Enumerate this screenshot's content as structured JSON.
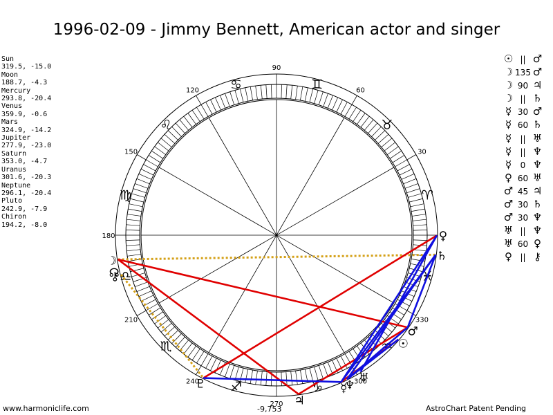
{
  "title": "1996-02-09 - Jimmy Bennett, American actor and singer",
  "planets": [
    {
      "name": "Sun",
      "lon": 319.5,
      "lat": -15.0,
      "coords": "319.5, -15.0"
    },
    {
      "name": "Moon",
      "lon": 188.7,
      "lat": -4.3,
      "coords": "188.7, -4.3"
    },
    {
      "name": "Mercury",
      "lon": 293.8,
      "lat": -20.4,
      "coords": "293.8, -20.4"
    },
    {
      "name": "Venus",
      "lon": 359.9,
      "lat": -0.6,
      "coords": "359.9, -0.6"
    },
    {
      "name": "Mars",
      "lon": 324.9,
      "lat": -14.2,
      "coords": "324.9, -14.2"
    },
    {
      "name": "Jupiter",
      "lon": 277.9,
      "lat": -23.0,
      "coords": "277.9, -23.0"
    },
    {
      "name": "Saturn",
      "lon": 353.0,
      "lat": -4.7,
      "coords": "353.0, -4.7"
    },
    {
      "name": "Uranus",
      "lon": 301.6,
      "lat": -20.3,
      "coords": "301.6, -20.3"
    },
    {
      "name": "Neptune",
      "lon": 296.1,
      "lat": -20.4,
      "coords": "296.1, -20.4"
    },
    {
      "name": "Pluto",
      "lon": 242.9,
      "lat": -7.9,
      "coords": "242.9, -7.9"
    },
    {
      "name": "Chiron",
      "lon": 194.2,
      "lat": -8.0,
      "coords": "194.2, -8.0"
    }
  ],
  "chart_data": {
    "type": "astrological-chart-wheel",
    "degree_labels": [
      "90",
      "60",
      "30",
      "330",
      "300",
      "270",
      "240",
      "210",
      "180",
      "150",
      "120"
    ],
    "degree_values": [
      90,
      60,
      30,
      330,
      300,
      270,
      240,
      210,
      180,
      150,
      120
    ],
    "zodiac_signs": [
      {
        "sign": "aries",
        "glyph": "♈",
        "lon": 15
      },
      {
        "sign": "taurus",
        "glyph": "♉",
        "lon": 45
      },
      {
        "sign": "gemini",
        "glyph": "♊",
        "lon": 75
      },
      {
        "sign": "cancer",
        "glyph": "♋",
        "lon": 105
      },
      {
        "sign": "leo",
        "glyph": "♌",
        "lon": 135
      },
      {
        "sign": "virgo",
        "glyph": "♍",
        "lon": 165
      },
      {
        "sign": "libra",
        "glyph": "♎",
        "lon": 195
      },
      {
        "sign": "scorpio",
        "glyph": "♏",
        "lon": 225
      },
      {
        "sign": "sagittarius",
        "glyph": "♐",
        "lon": 255
      },
      {
        "sign": "capricorn",
        "glyph": "♑",
        "lon": 285
      },
      {
        "sign": "aquarius",
        "glyph": "♒",
        "lon": 315
      },
      {
        "sign": "pisces",
        "glyph": "♓",
        "lon": 345
      }
    ],
    "planet_glyphs": [
      {
        "name": "Sun",
        "glyph": "☉",
        "lon": 319.5
      },
      {
        "name": "Moon",
        "glyph": "☽",
        "lon": 188.7
      },
      {
        "name": "Mercury",
        "glyph": "☿",
        "lon": 293.8
      },
      {
        "name": "Venus",
        "glyph": "♀",
        "lon": 359.9
      },
      {
        "name": "Mars",
        "glyph": "♂",
        "lon": 324.9
      },
      {
        "name": "Jupiter",
        "glyph": "♃",
        "lon": 277.9
      },
      {
        "name": "Saturn",
        "glyph": "♄",
        "lon": 353.0
      },
      {
        "name": "Uranus",
        "glyph": "♅",
        "lon": 301.6
      },
      {
        "name": "Neptune",
        "glyph": "♆",
        "lon": 296.1
      },
      {
        "name": "Pluto",
        "glyph": "♇",
        "lon": 242.9
      },
      {
        "name": "Chiron",
        "glyph": "⚷",
        "lon": 194.2
      },
      {
        "name": "Node",
        "glyph": "☊",
        "lon": 193.0
      }
    ],
    "aspect_lines": [
      {
        "a": "Moon",
        "b": "Jupiter",
        "color": "#e00000"
      },
      {
        "a": "Moon",
        "b": "Mars",
        "color": "#e00000"
      },
      {
        "a": "Jupiter",
        "b": "Mars",
        "color": "#e00000"
      },
      {
        "a": "Pluto",
        "b": "Venus",
        "color": "#e00000"
      },
      {
        "a": "Mercury",
        "b": "Sun",
        "color": "#e00000"
      },
      {
        "a": "Pluto",
        "b": "Mercury",
        "color": "#1010e0"
      },
      {
        "a": "Mercury",
        "b": "Saturn",
        "color": "#1010e0"
      },
      {
        "a": "Mercury",
        "b": "Venus",
        "color": "#1010e0"
      },
      {
        "a": "Mars",
        "b": "Saturn",
        "color": "#1010e0"
      },
      {
        "a": "Mars",
        "b": "Neptune",
        "color": "#1010e0"
      },
      {
        "a": "Uranus",
        "b": "Venus",
        "color": "#1010e0"
      },
      {
        "a": "Neptune",
        "b": "Saturn",
        "color": "#1010e0"
      },
      {
        "a": "Sun",
        "b": "Neptune",
        "color": "#1010e0"
      }
    ],
    "parallel_lines": [
      {
        "a": "Moon",
        "b": "Saturn",
        "color": "#d4a017"
      },
      {
        "a": "Chiron",
        "b": "Pluto",
        "color": "#d4a017"
      }
    ],
    "center_value": "-9,753"
  },
  "aspects": [
    {
      "g1": "☉",
      "type": "||",
      "g2": "♂"
    },
    {
      "g1": "☽",
      "type": "135",
      "g2": "♂"
    },
    {
      "g1": "☽",
      "type": "90",
      "g2": "♃"
    },
    {
      "g1": "☽",
      "type": "||",
      "g2": "♄"
    },
    {
      "g1": "☿",
      "type": "30",
      "g2": "♂"
    },
    {
      "g1": "☿",
      "type": "60",
      "g2": "♄"
    },
    {
      "g1": "☿",
      "type": "||",
      "g2": "♅"
    },
    {
      "g1": "☿",
      "type": "||",
      "g2": "♆"
    },
    {
      "g1": "☿",
      "type": "0",
      "g2": "♆"
    },
    {
      "g1": "♀",
      "type": "60",
      "g2": "♅"
    },
    {
      "g1": "♂",
      "type": "45",
      "g2": "♃"
    },
    {
      "g1": "♂",
      "type": "30",
      "g2": "♄"
    },
    {
      "g1": "♂",
      "type": "30",
      "g2": "♆"
    },
    {
      "g1": "♅",
      "type": "||",
      "g2": "♆"
    },
    {
      "g1": "♅",
      "type": "60",
      "g2": "♀"
    },
    {
      "g1": "♀",
      "type": "||",
      "g2": "⚷"
    }
  ],
  "footer": {
    "left": "www.harmoniclife.com",
    "right": "AstroChart Patent Pending"
  },
  "colors": {
    "hard_aspect": "#e00000",
    "soft_aspect": "#1010e0",
    "parallel": "#d4a017"
  }
}
